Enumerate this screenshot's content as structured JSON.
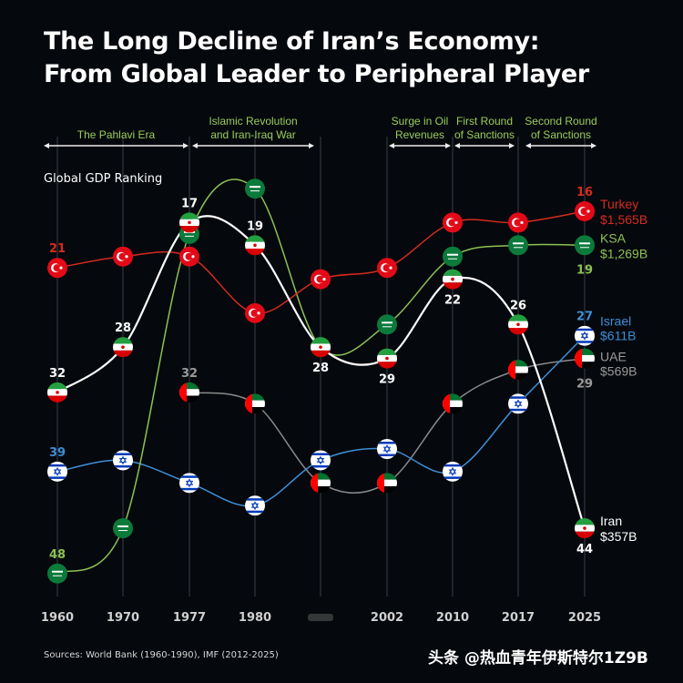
{
  "title_line1": "The Long Decline of Iran’s Economy:",
  "title_line2": "From Global Leader to Peripheral Player",
  "sources": "Sources: World Bank (1960-1990), IMF (2012-2025)",
  "watermark": "头条 @热血青年伊斯特尔1Z9B",
  "chart_data": {
    "type": "line",
    "ylabel": "Global GDP Ranking",
    "y_axis": "rank, inverted (1 at top)",
    "categories": [
      "1960",
      "1970",
      "1977",
      "1980",
      "",
      "2002",
      "2010",
      "2017",
      "2025"
    ],
    "eras": [
      {
        "label": [
          "The Pahlavi Era"
        ],
        "from": "1960",
        "to": "1977"
      },
      {
        "label": [
          "Islamic Revolution",
          "and Iran-Iraq War"
        ],
        "from": "1977",
        "to": "1990"
      },
      {
        "label": [
          "Surge in Oil",
          "Revenues"
        ],
        "from": "2002",
        "to": "2010"
      },
      {
        "label": [
          "First  Round",
          "of Sanctions"
        ],
        "from": "2010",
        "to": "2017"
      },
      {
        "label": [
          "Second Round",
          "of Sanctions"
        ],
        "from": "2017",
        "to": "2025"
      }
    ],
    "series": [
      {
        "name": "UAE",
        "end_value": "$569B",
        "color": "#8a8a8a",
        "flag": "uae",
        "values": [
          null,
          null,
          32,
          33,
          40,
          40,
          33,
          30,
          29
        ],
        "labels": [
          null,
          null,
          "32",
          null,
          null,
          null,
          null,
          null,
          "29"
        ]
      },
      {
        "name": "Israel",
        "end_value": "$611B",
        "color": "#3d8fd6",
        "flag": "israel",
        "values": [
          39,
          38,
          40,
          42,
          38,
          37,
          39,
          33,
          27
        ],
        "labels": [
          "39",
          null,
          null,
          null,
          null,
          null,
          null,
          null,
          "27"
        ]
      },
      {
        "name": "KSA",
        "end_value": "$1,269B",
        "color": "#8cc152",
        "flag": "ksa",
        "values": [
          48,
          44,
          18,
          14,
          28,
          26,
          20,
          19,
          19
        ],
        "labels": [
          "48",
          null,
          null,
          null,
          null,
          null,
          null,
          null,
          "19"
        ]
      },
      {
        "name": "Turkey",
        "end_value": "$1,565B",
        "color": "#d52b1e",
        "flag": "turkey",
        "values": [
          21,
          20,
          20,
          25,
          22,
          21,
          17,
          17,
          16
        ],
        "labels": [
          "21",
          null,
          null,
          null,
          null,
          null,
          null,
          null,
          "16"
        ]
      },
      {
        "name": "Iran",
        "end_value": "$357B",
        "color": "#ffffff",
        "flag": "iran",
        "values": [
          32,
          28,
          17,
          19,
          28,
          29,
          22,
          26,
          44
        ],
        "labels": [
          "32",
          "28",
          "17",
          "19",
          "28",
          "29",
          "22",
          "26",
          "44"
        ]
      }
    ]
  }
}
